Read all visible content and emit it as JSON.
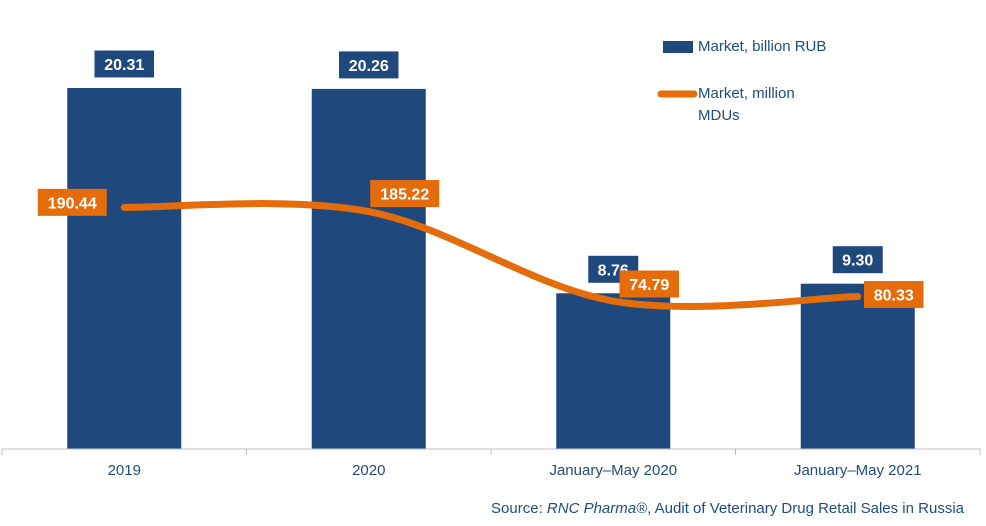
{
  "chart_data": {
    "type": "bar",
    "categories": [
      "2019",
      "2020",
      "January–May 2020",
      "January–May 2021"
    ],
    "series": [
      {
        "name": "Market, billion RUB",
        "kind": "bar",
        "color": "#1f497d",
        "values": [
          20.31,
          20.26,
          8.76,
          9.3
        ],
        "labels": [
          "20.31",
          "20.26",
          "8.76",
          "9.30"
        ]
      },
      {
        "name": "Market, million MDUs",
        "kind": "line",
        "color": "#e46c0a",
        "values": [
          190.44,
          185.22,
          74.79,
          80.33
        ],
        "labels": [
          "190.44",
          "185.22",
          "74.79",
          "80.33"
        ]
      }
    ],
    "legend_placement": "top-right",
    "grid": false
  },
  "legend": {
    "bar_label": "Market, billion RUB",
    "line_label_1": "Market, million",
    "line_label_2": "MDUs"
  },
  "source": {
    "prefix": "Source: ",
    "company": "RNC Pharma®",
    "suffix": ", Audit of Veterinary Drug Retail Sales in Russia"
  }
}
